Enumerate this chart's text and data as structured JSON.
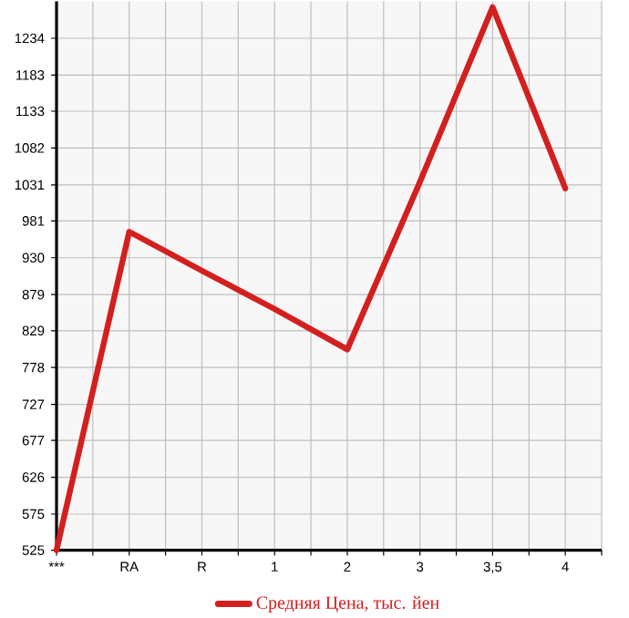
{
  "chart_data": {
    "type": "line",
    "categories": [
      "***",
      "RA",
      "R",
      "1",
      "2",
      "3",
      "3,5",
      "4"
    ],
    "series": [
      {
        "name": "Средняя Цена, тыс. йен",
        "color": "#d41f1f",
        "values": [
          525,
          966,
          912,
          859,
          803,
          1035,
          1277,
          1026
        ]
      }
    ],
    "ylim": [
      525,
      1285
    ],
    "yticks": [
      525,
      575,
      626,
      677,
      727,
      778,
      829,
      879,
      930,
      981,
      1031,
      1082,
      1133,
      1183,
      1234
    ],
    "grid": true,
    "legend": "bottom",
    "marker": "none",
    "line_style": "solid"
  }
}
